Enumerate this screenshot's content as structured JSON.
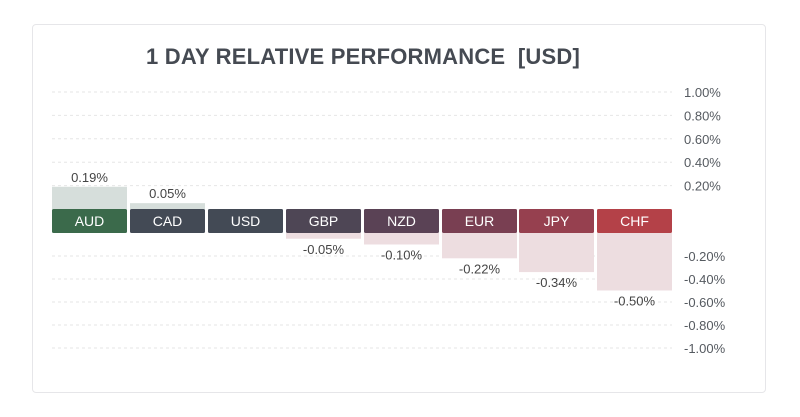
{
  "title": "1 DAY RELATIVE PERFORMANCE  [USD]",
  "chart_data": {
    "type": "bar",
    "categories": [
      "AUD",
      "CAD",
      "USD",
      "GBP",
      "NZD",
      "EUR",
      "JPY",
      "CHF"
    ],
    "values": [
      0.19,
      0.05,
      0.0,
      -0.05,
      -0.1,
      -0.22,
      -0.34,
      -0.5
    ],
    "value_labels": [
      "0.19%",
      "0.05%",
      "",
      "-0.05%",
      "-0.10%",
      "-0.22%",
      "-0.34%",
      "-0.50%"
    ],
    "ylim": [
      -1.0,
      1.0
    ],
    "y_ticks_positive": [
      "1.00%",
      "0.80%",
      "0.60%",
      "0.40%",
      "0.20%"
    ],
    "y_ticks_negative": [
      "-0.20%",
      "-0.40%",
      "-0.60%",
      "-0.80%",
      "-1.00%"
    ],
    "grid": true,
    "label_box_colors": [
      "#3b6a4b",
      "#434a55",
      "#434a55",
      "#4e4655",
      "#5a4255",
      "#793f52",
      "#96404f",
      "#b44148"
    ],
    "bar_colors": {
      "positive": "#d6dedb",
      "negative": "#eddde0",
      "zero": "#eeeeee"
    }
  }
}
